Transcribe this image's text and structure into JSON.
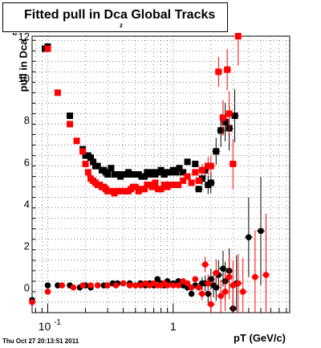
{
  "header": {
    "title": "Fitted pull in Dca Global Tracks",
    "title_subscript": "z",
    "timestamp": "Thu Oct 27 20:13:51 2011"
  },
  "chart_data": {
    "type": "scatter",
    "xlabel": "pT (GeV/c)",
    "ylabel": "pull in Dca",
    "ylabel_subscript": "z",
    "x_scale": "log",
    "xlim": [
      0.075,
      8.5
    ],
    "ylim": [
      -1.2,
      12
    ],
    "grid": true,
    "y_ticks": [
      0,
      2,
      4,
      6,
      8,
      10,
      12
    ],
    "y_tick_labels": [
      "0",
      "2",
      "4",
      "6",
      "8",
      "10",
      "12"
    ],
    "x_tick_labels": [
      {
        "value": 0.1,
        "label": "10",
        "exponent": "-1"
      },
      {
        "value": 1,
        "label": "1",
        "exponent": ""
      }
    ],
    "colors": {
      "series_black": "#000000",
      "series_red": "#ff0000"
    },
    "series": [
      {
        "marker": "square",
        "color": "#000000",
        "x": [
          0.095,
          0.1,
          0.15,
          0.19,
          0.2,
          0.21,
          0.22,
          0.23,
          0.24,
          0.25,
          0.27,
          0.28,
          0.29,
          0.3,
          0.32,
          0.34,
          0.36,
          0.38,
          0.4,
          0.42,
          0.44,
          0.46,
          0.48,
          0.5,
          0.53,
          0.56,
          0.59,
          0.62,
          0.65,
          0.68,
          0.72,
          0.76,
          0.8,
          0.85,
          0.9,
          0.95,
          1.0,
          1.06,
          1.12,
          1.2,
          1.3,
          1.5,
          1.6,
          1.7,
          1.8,
          1.9,
          2.0,
          2.2,
          2.4,
          2.6,
          2.8,
          3.1
        ],
        "y": [
          11.4,
          11.5,
          8.2,
          6.6,
          6.3,
          6.3,
          6.2,
          6.0,
          5.8,
          5.8,
          5.6,
          5.6,
          5.5,
          5.4,
          5.7,
          5.4,
          5.4,
          5.3,
          5.4,
          5.4,
          5.5,
          5.4,
          5.4,
          5.4,
          5.4,
          5.3,
          5.3,
          5.5,
          5.4,
          5.5,
          5.4,
          5.5,
          5.6,
          5.4,
          5.5,
          5.5,
          5.6,
          5.5,
          5.7,
          5.5,
          6.0,
          5.9,
          4.7,
          5.2,
          5.6,
          4.9,
          5.0,
          6.5,
          7.5,
          7.9,
          7.6,
          8.2
        ]
      },
      {
        "marker": "square",
        "color": "#ff0000",
        "x": [
          0.1,
          0.12,
          0.15,
          0.17,
          0.19,
          0.2,
          0.21,
          0.22,
          0.23,
          0.24,
          0.25,
          0.26,
          0.27,
          0.28,
          0.29,
          0.3,
          0.32,
          0.34,
          0.36,
          0.38,
          0.4,
          0.42,
          0.44,
          0.46,
          0.48,
          0.5,
          0.53,
          0.56,
          0.59,
          0.62,
          0.65,
          0.68,
          0.72,
          0.76,
          0.8,
          0.85,
          0.9,
          0.95,
          1.0,
          1.1,
          1.2,
          1.3,
          1.4,
          1.5,
          1.6,
          1.7,
          1.9,
          2.0,
          2.3,
          2.5,
          2.7,
          2.8,
          3.0,
          3.3
        ],
        "y": [
          11.4,
          9.3,
          7.8,
          7.0,
          6.5,
          5.9,
          5.5,
          5.2,
          5.1,
          5.0,
          4.9,
          4.9,
          4.8,
          4.8,
          4.7,
          4.6,
          4.6,
          4.5,
          4.6,
          4.6,
          4.6,
          4.6,
          4.6,
          4.7,
          4.8,
          4.8,
          4.6,
          4.7,
          4.7,
          4.9,
          4.9,
          4.8,
          5.0,
          4.7,
          4.7,
          4.9,
          4.8,
          4.9,
          4.9,
          4.9,
          5.1,
          5.3,
          5.0,
          5.5,
          5.1,
          5.6,
          5.8,
          5.8,
          10.3,
          8.1,
          10.4,
          8.3,
          5.9,
          12.0
        ]
      },
      {
        "marker": "circle",
        "color": "#000000",
        "x": [
          0.075,
          0.1,
          0.12,
          0.15,
          0.18,
          0.2,
          0.22,
          0.25,
          0.28,
          0.3,
          0.33,
          0.36,
          0.4,
          0.45,
          0.5,
          0.55,
          0.6,
          0.65,
          0.7,
          0.75,
          0.8,
          0.85,
          0.9,
          1.0,
          1.1,
          1.2,
          1.3,
          1.4,
          1.5,
          1.6,
          1.7,
          1.8,
          1.9,
          2.0,
          2.1,
          2.2,
          2.3,
          2.5,
          2.6,
          2.8,
          3.0,
          3.2,
          4.0,
          5.0
        ],
        "y": [
          -0.6,
          0.1,
          0.1,
          0.1,
          0.0,
          0.1,
          0.0,
          0.1,
          0.1,
          0.1,
          0.2,
          0.2,
          0.2,
          0.2,
          0.1,
          0.2,
          0.1,
          0.2,
          0.1,
          0.4,
          0.2,
          0.1,
          0.3,
          0.2,
          0.3,
          0.1,
          0.0,
          -0.3,
          0.1,
          0.0,
          0.2,
          0.2,
          -0.3,
          0.4,
          0.1,
          0.0,
          0.6,
          0.9,
          0.3,
          0.8,
          -1.0,
          0.2,
          2.4,
          2.7
        ]
      },
      {
        "marker": "circle",
        "color": "#ff0000",
        "x": [
          0.075,
          0.1,
          0.13,
          0.16,
          0.19,
          0.22,
          0.25,
          0.3,
          0.35,
          0.4,
          0.45,
          0.5,
          0.55,
          0.6,
          0.65,
          0.7,
          0.75,
          0.8,
          0.85,
          0.9,
          1.0,
          1.1,
          1.2,
          1.3,
          1.4,
          1.5,
          1.6,
          1.7,
          1.8,
          1.9,
          2.0,
          2.2,
          2.4,
          2.6,
          2.8,
          3.0,
          3.3,
          3.6,
          4.5,
          5.5
        ],
        "y": [
          -0.7,
          -0.2,
          0.1,
          0.0,
          0.1,
          0.1,
          0.1,
          0.1,
          0.1,
          0.2,
          0.1,
          0.1,
          0.1,
          0.2,
          0.1,
          0.2,
          0.1,
          0.1,
          0.2,
          0.1,
          0.1,
          0.1,
          0.3,
          0.2,
          0.0,
          0.4,
          0.0,
          -0.3,
          1.1,
          0.2,
          -0.8,
          0.7,
          -0.4,
          -0.2,
          0.5,
          0.1,
          0.2,
          -0.2,
          0.5,
          0.6
        ]
      }
    ]
  }
}
